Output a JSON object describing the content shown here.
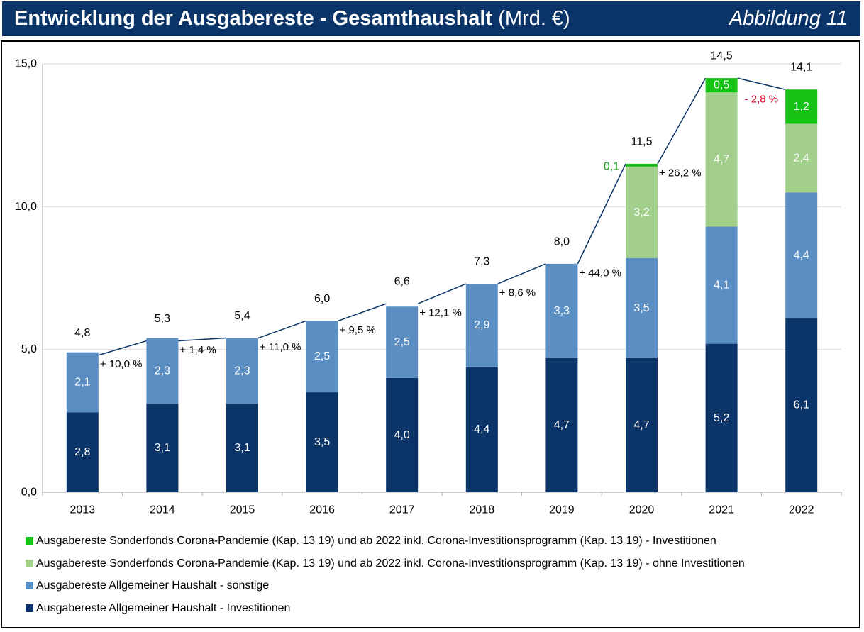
{
  "header": {
    "title": "Entwicklung der Ausgabereste - Gesamthaushalt",
    "unit": "(Mrd. €)",
    "figure_label": "Abbildung 11"
  },
  "colors": {
    "header_bg": "#0b3468",
    "invest": "#0b3468",
    "sonstige": "#5b8fc3",
    "corona_ohne": "#a2cf8b",
    "corona_invest": "#16c216",
    "growth_positive": "#000000",
    "growth_negative": "#e0002a",
    "corona_label_outside": "#10a010"
  },
  "chart_data": {
    "type": "bar",
    "stacked": true,
    "title": "Entwicklung der Ausgabereste - Gesamthaushalt (Mrd. €)",
    "xlabel": "",
    "ylabel": "",
    "ylim": [
      0,
      15
    ],
    "yticks": [
      "0,0",
      "5,0",
      "10,0",
      "15,0"
    ],
    "ytick_values": [
      0,
      5,
      10,
      15
    ],
    "grid": true,
    "legend_position": "bottom",
    "categories": [
      "2013",
      "2014",
      "2015",
      "2016",
      "2017",
      "2018",
      "2019",
      "2020",
      "2021",
      "2022"
    ],
    "series": [
      {
        "name": "Ausgabereste Allgemeiner Haushalt - Investitionen",
        "color_key": "invest",
        "values": [
          2.8,
          3.1,
          3.1,
          3.5,
          4.0,
          4.4,
          4.7,
          4.7,
          5.2,
          6.1
        ],
        "labels": [
          "2,8",
          "3,1",
          "3,1",
          "3,5",
          "4,0",
          "4,4",
          "4,7",
          "4,7",
          "5,2",
          "6,1"
        ]
      },
      {
        "name": "Ausgabereste Allgemeiner Haushalt - sonstige",
        "color_key": "sonstige",
        "values": [
          2.1,
          2.3,
          2.3,
          2.5,
          2.5,
          2.9,
          3.3,
          3.5,
          4.1,
          4.4
        ],
        "labels": [
          "2,1",
          "2,3",
          "2,3",
          "2,5",
          "2,5",
          "2,9",
          "3,3",
          "3,5",
          "4,1",
          "4,4"
        ]
      },
      {
        "name": "Ausgabereste Sonderfonds Corona-Pandemie (Kap. 13 19) und ab 2022 inkl. Corona-Investitionsprogramm (Kap. 13 19) - ohne Investitionen",
        "color_key": "corona_ohne",
        "values": [
          0,
          0,
          0,
          0,
          0,
          0,
          0,
          3.2,
          4.7,
          2.4
        ],
        "labels": [
          "",
          "",
          "",
          "",
          "",
          "",
          "",
          "3,2",
          "4,7",
          "2,4"
        ]
      },
      {
        "name": "Ausgabereste Sonderfonds Corona-Pandemie (Kap. 13 19) und ab 2022 inkl. Corona-Investitionsprogramm (Kap. 13 19) - Investitionen",
        "color_key": "corona_invest",
        "values": [
          0,
          0,
          0,
          0,
          0,
          0,
          0,
          0.1,
          0.5,
          1.2
        ],
        "labels": [
          "",
          "",
          "",
          "",
          "",
          "",
          "",
          "0,1",
          "0,5",
          "1,2"
        ]
      }
    ],
    "totals": [
      4.8,
      5.3,
      5.4,
      6.0,
      6.6,
      7.3,
      8.0,
      11.5,
      14.5,
      14.1
    ],
    "total_labels": [
      "4,8",
      "5,3",
      "5,4",
      "6,0",
      "6,6",
      "7,3",
      "8,0",
      "11,5",
      "14,5",
      "14,1"
    ],
    "growth_labels": [
      "+ 10,0 %",
      "+ 1,4 %",
      "+ 11,0 %",
      "+ 9,5 %",
      "+ 12,1 %",
      "+ 8,6 %",
      "+ 44,0 %",
      "+ 26,2 %",
      "- 2,8 %"
    ],
    "growth_values": [
      10.0,
      1.4,
      11.0,
      9.5,
      12.1,
      8.6,
      44.0,
      26.2,
      -2.8
    ]
  },
  "legend": {
    "order": [
      3,
      2,
      1,
      0
    ]
  }
}
